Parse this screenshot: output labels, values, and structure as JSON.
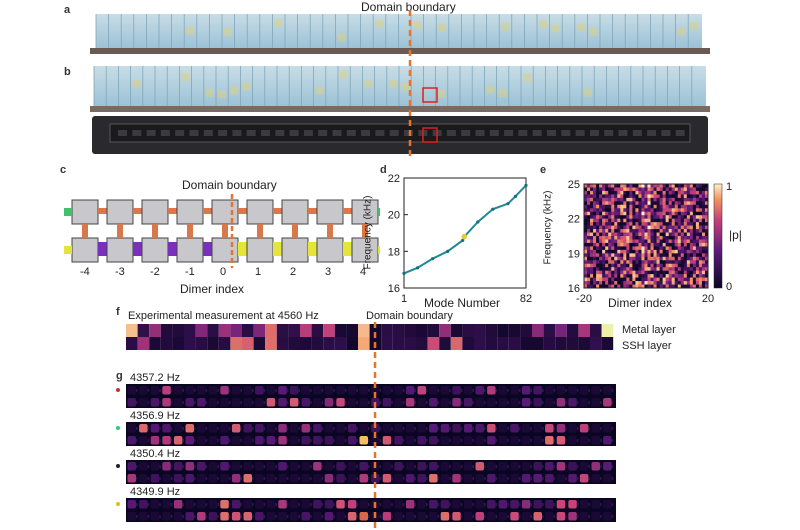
{
  "panels": {
    "a": "a",
    "b": "b",
    "c": "c",
    "d": "d",
    "e": "e",
    "f": "f",
    "g": "g"
  },
  "top_boundary_label": "Domain boundary",
  "c": {
    "boundary_label": "Domain boundary",
    "indices": [
      "-4",
      "-3",
      "-2",
      "-1",
      "0",
      "1",
      "2",
      "3",
      "4"
    ],
    "xlabel": "Dimer index"
  },
  "chart_data": [
    {
      "type": "line",
      "panel": "d",
      "xlabel": "Mode Number",
      "ylabel": "Frequency (kHz)",
      "x_ticks": [
        "1",
        "82"
      ],
      "y_ticks": [
        "16",
        "18",
        "20",
        "22"
      ],
      "xlim": [
        1,
        82
      ],
      "ylim": [
        16,
        22
      ],
      "x": [
        1,
        10,
        20,
        30,
        40,
        41,
        50,
        60,
        70,
        75,
        82
      ],
      "y": [
        16.8,
        17.1,
        17.6,
        18.0,
        18.6,
        18.8,
        19.6,
        20.3,
        20.6,
        21.0,
        21.6
      ],
      "highlight": {
        "x": 41,
        "y": 18.8,
        "color": "#e8c93a"
      }
    },
    {
      "type": "heatmap",
      "panel": "e",
      "xlabel": "Dimer index",
      "ylabel": "Frequency (kHz)",
      "x_ticks": [
        "-20",
        "20"
      ],
      "y_ticks": [
        "16",
        "19",
        "22",
        "25"
      ],
      "xlim": [
        -20,
        20
      ],
      "ylim": [
        16,
        25
      ],
      "colorbar_label": "|p|",
      "colorbar_ticks": [
        "0",
        "1"
      ]
    }
  ],
  "f": {
    "title": "Experimental measurement at 4560 Hz",
    "boundary_label": "Domain boundary",
    "row_labels": [
      "Metal layer",
      "SSH layer"
    ]
  },
  "g": {
    "modes": [
      {
        "label": "4357.2 Hz",
        "dot_color": "#c0392b"
      },
      {
        "label": "4356.9 Hz",
        "dot_color": "#2ecc71"
      },
      {
        "label": "4350.4 Hz",
        "dot_color": "#222222"
      },
      {
        "label": "4349.9 Hz",
        "dot_color": "#d4c21a"
      }
    ]
  },
  "colors": {
    "boundary": "#e8742a",
    "block_top": "#a8c8dc",
    "green_port": "#3fc26a",
    "yellow_port": "#e4e43a",
    "purple_port": "#7b2fbf",
    "connector": "#d9784a"
  }
}
